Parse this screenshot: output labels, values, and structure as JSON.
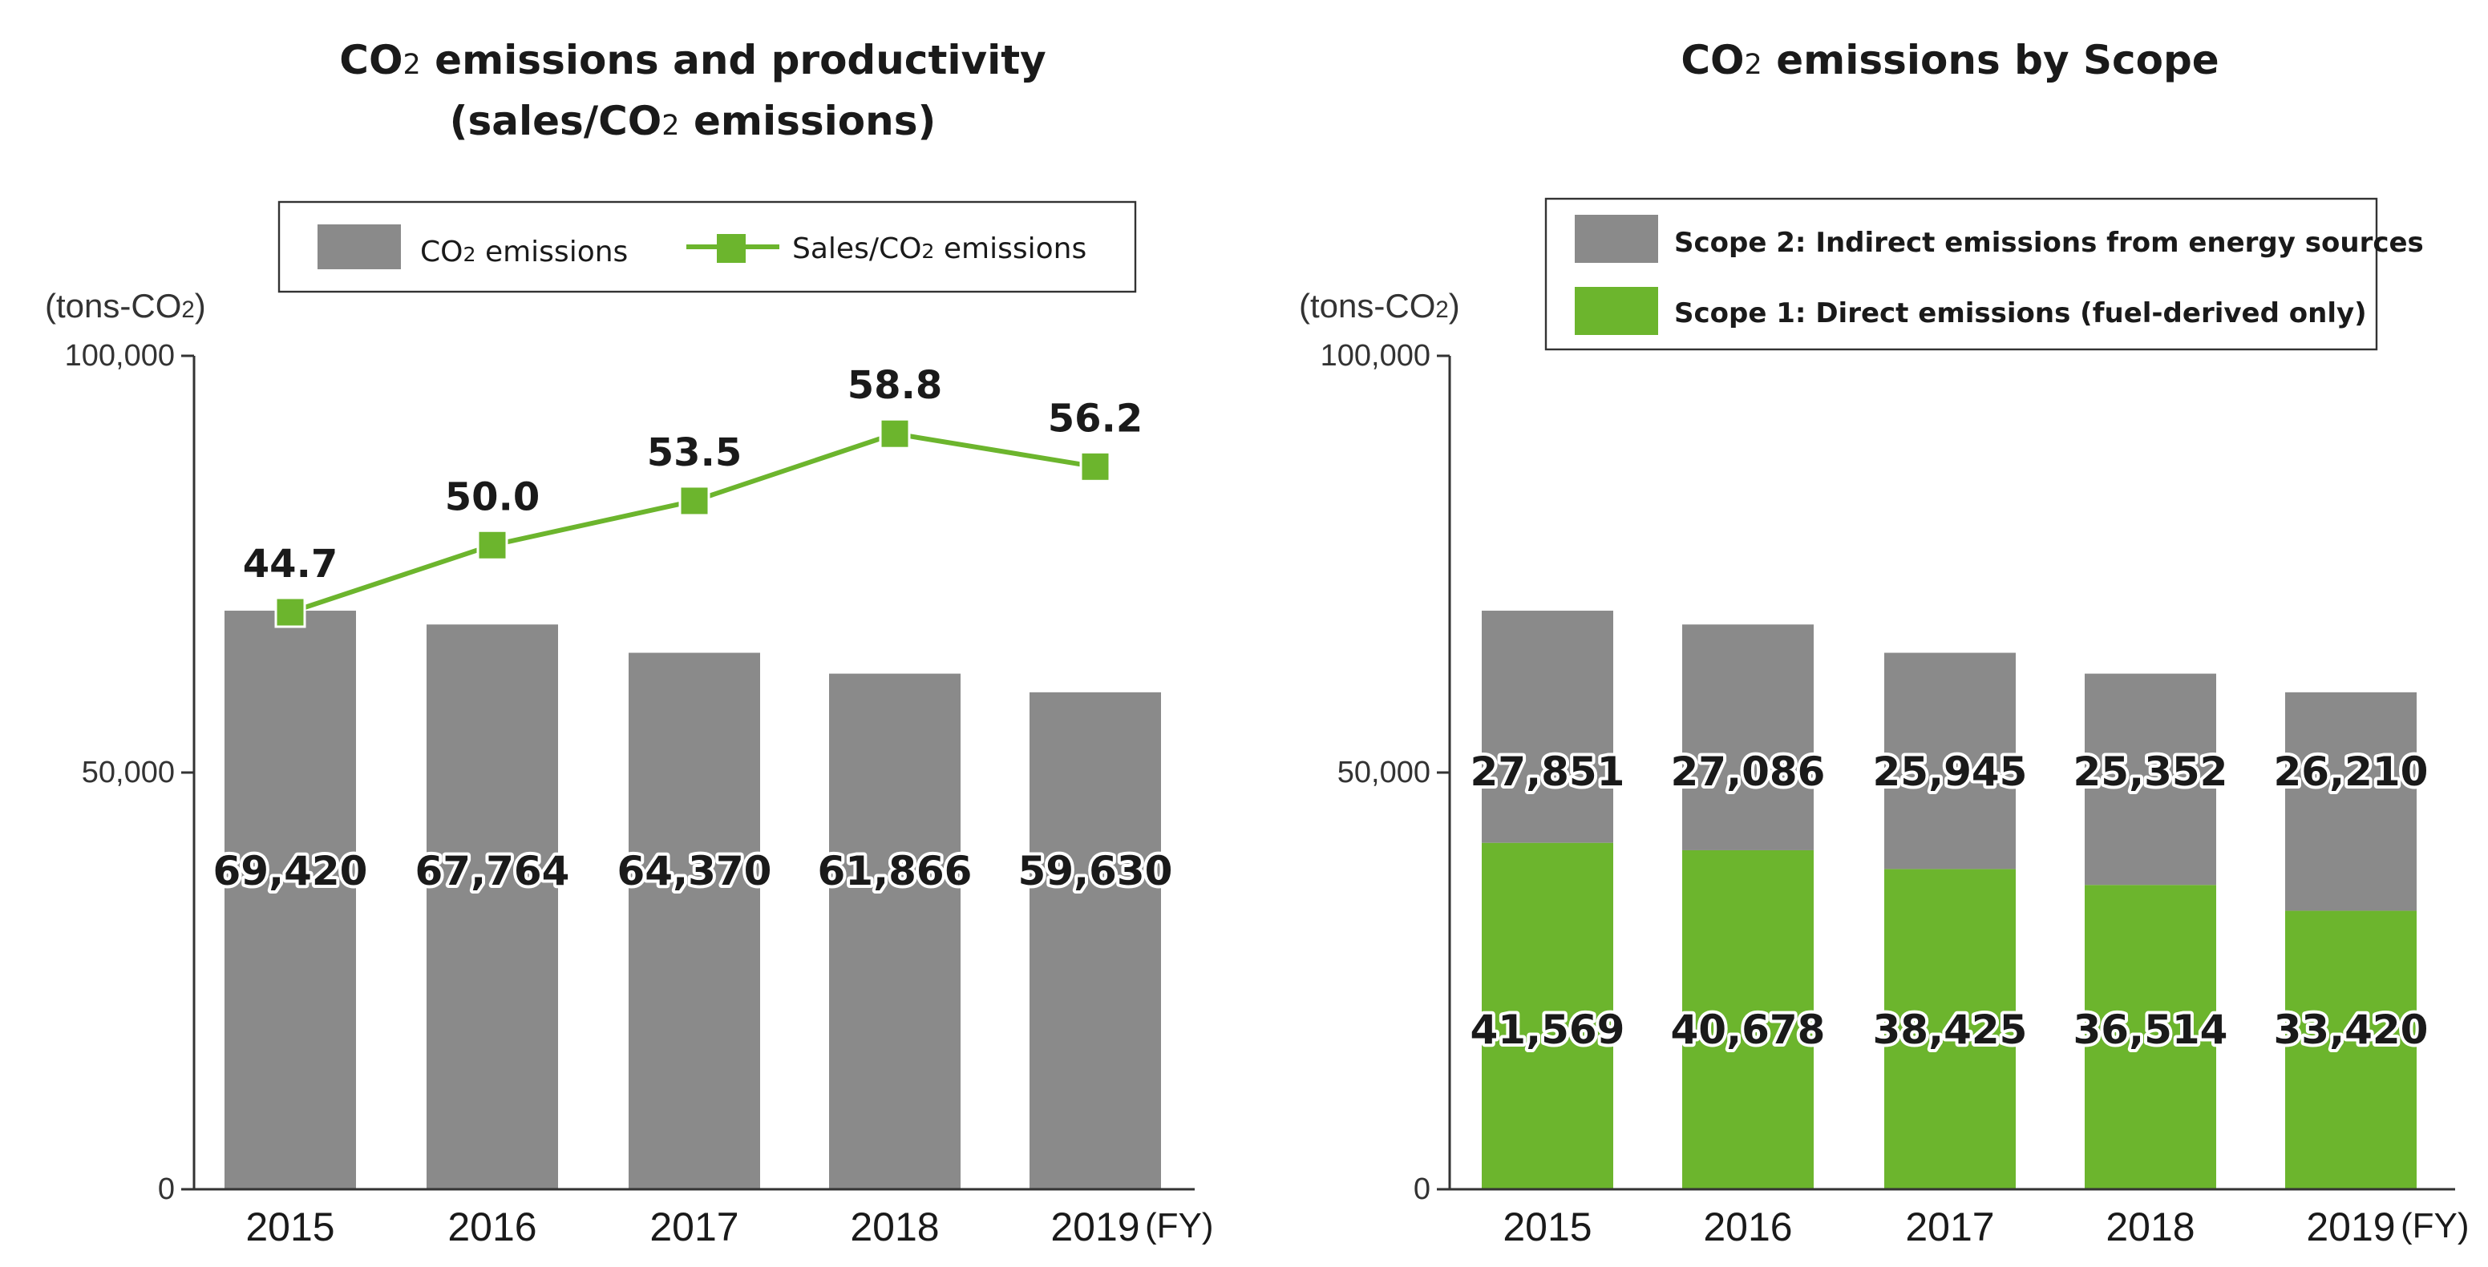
{
  "colors": {
    "co2_bar": "#8a8a8a",
    "scope2": "#8a8a8a",
    "scope1": "#6cb52d",
    "line": "#6cb52d",
    "axis": "#333333"
  },
  "chart_data": [
    {
      "type": "bar",
      "title_parts": [
        "CO",
        "2",
        " emissions and productivity"
      ],
      "title_line2_parts": [
        "(sales/CO",
        "2",
        " emissions)"
      ],
      "ylabel_parts": [
        "(tons-CO",
        "2",
        ")"
      ],
      "ylim": [
        0,
        100000
      ],
      "yticks": [
        0,
        50000,
        100000
      ],
      "ytick_labels": [
        "0",
        "50,000",
        "100,000"
      ],
      "xunit": "(FY)",
      "categories": [
        "2015",
        "2016",
        "2017",
        "2018",
        "2019"
      ],
      "legend": {
        "bar_parts": [
          "CO",
          "2",
          " emissions"
        ],
        "line_parts": [
          "Sales/CO",
          "2",
          " emissions"
        ]
      },
      "series": [
        {
          "name": "CO2 emissions",
          "kind": "bar",
          "values": [
            69420,
            67764,
            64370,
            61866,
            59630
          ],
          "labels": [
            "69,420",
            "67,764",
            "64,370",
            "61,866",
            "59,630"
          ]
        },
        {
          "name": "Sales/CO2 emissions",
          "kind": "line",
          "values": [
            44.7,
            50.0,
            53.5,
            58.8,
            56.2
          ],
          "labels": [
            "44.7",
            "50.0",
            "53.5",
            "58.8",
            "56.2"
          ]
        }
      ]
    },
    {
      "type": "bar",
      "stacked": true,
      "title_parts": [
        "CO",
        "2",
        " emissions by Scope"
      ],
      "ylabel_parts": [
        "(tons-CO",
        "2",
        ")"
      ],
      "ylim": [
        0,
        100000
      ],
      "yticks": [
        0,
        50000,
        100000
      ],
      "ytick_labels": [
        "0",
        "50,000",
        "100,000"
      ],
      "xunit": "(FY)",
      "categories": [
        "2015",
        "2016",
        "2017",
        "2018",
        "2019"
      ],
      "legend": {
        "scope2": "Scope 2: Indirect emissions from energy sources",
        "scope1": "Scope 1: Direct emissions (fuel-derived only)"
      },
      "series": [
        {
          "name": "Scope 1: Direct emissions (fuel-derived only)",
          "values": [
            41569,
            40678,
            38425,
            36514,
            33420
          ],
          "labels": [
            "41,569",
            "40,678",
            "38,425",
            "36,514",
            "33,420"
          ]
        },
        {
          "name": "Scope 2: Indirect emissions from energy sources",
          "values": [
            27851,
            27086,
            25945,
            25352,
            26210
          ],
          "labels": [
            "27,851",
            "27,086",
            "25,945",
            "25,352",
            "26,210"
          ]
        }
      ]
    }
  ]
}
